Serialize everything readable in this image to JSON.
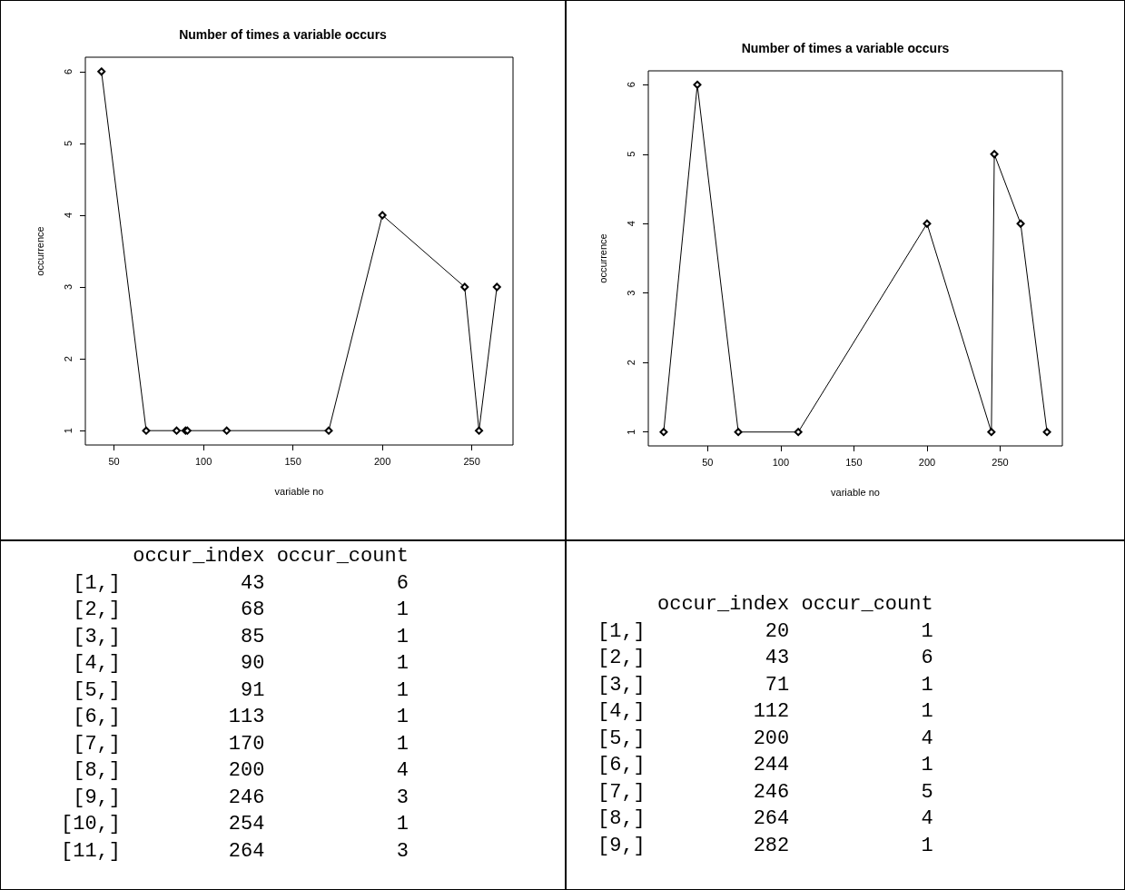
{
  "chart_data": [
    {
      "type": "line",
      "title": "Number of times a variable occurs",
      "xlabel": "variable no",
      "ylabel": "occurrence",
      "x": [
        43,
        68,
        85,
        90,
        91,
        113,
        170,
        200,
        246,
        254,
        264
      ],
      "series": [
        {
          "color": "#000000",
          "values": [
            6,
            1,
            1,
            1,
            1,
            1,
            1,
            4,
            3,
            1,
            3
          ]
        }
      ],
      "xlim": [
        34,
        273
      ],
      "xticks": [
        50,
        100,
        150,
        200,
        250
      ],
      "ylim": [
        0.8,
        6.2
      ],
      "yticks": [
        1,
        2,
        3,
        4,
        5,
        6
      ],
      "grid": false,
      "marker": "diamond",
      "line_style": "solid"
    },
    {
      "type": "line",
      "title": "Number of times a variable occurs",
      "xlabel": "variable no",
      "ylabel": "occurrence",
      "x": [
        20,
        43,
        71,
        112,
        200,
        244,
        246,
        264,
        282
      ],
      "series": [
        {
          "color": "#000000",
          "values": [
            1,
            6,
            1,
            1,
            4,
            1,
            5,
            4,
            1
          ]
        }
      ],
      "xlim": [
        9.5,
        292.5
      ],
      "xticks": [
        50,
        100,
        150,
        200,
        250
      ],
      "ylim": [
        0.8,
        6.2
      ],
      "yticks": [
        1,
        2,
        3,
        4,
        5,
        6
      ],
      "grid": false,
      "marker": "diamond",
      "line_style": "solid"
    },
    {
      "type": "other",
      "annotations": [
        "      occur_index occur_count",
        " [1,]          43           6",
        " [2,]          68           1",
        " [3,]          85           1",
        " [4,]          90           1",
        " [5,]          91           1",
        " [6,]         113           1",
        " [7,]         170           1",
        " [8,]         200           4",
        " [9,]         246           3",
        "[10,]         254           1",
        "[11,]         264           3"
      ]
    },
    {
      "type": "other",
      "annotations": [
        "     occur_index occur_count",
        "[1,]          20           1",
        "[2,]          43           6",
        "[3,]          71           1",
        "[4,]         112           1",
        "[5,]         200           4",
        "[6,]         244           1",
        "[7,]         246           5",
        "[8,]         264           4",
        "[9,]         282           1"
      ]
    }
  ]
}
